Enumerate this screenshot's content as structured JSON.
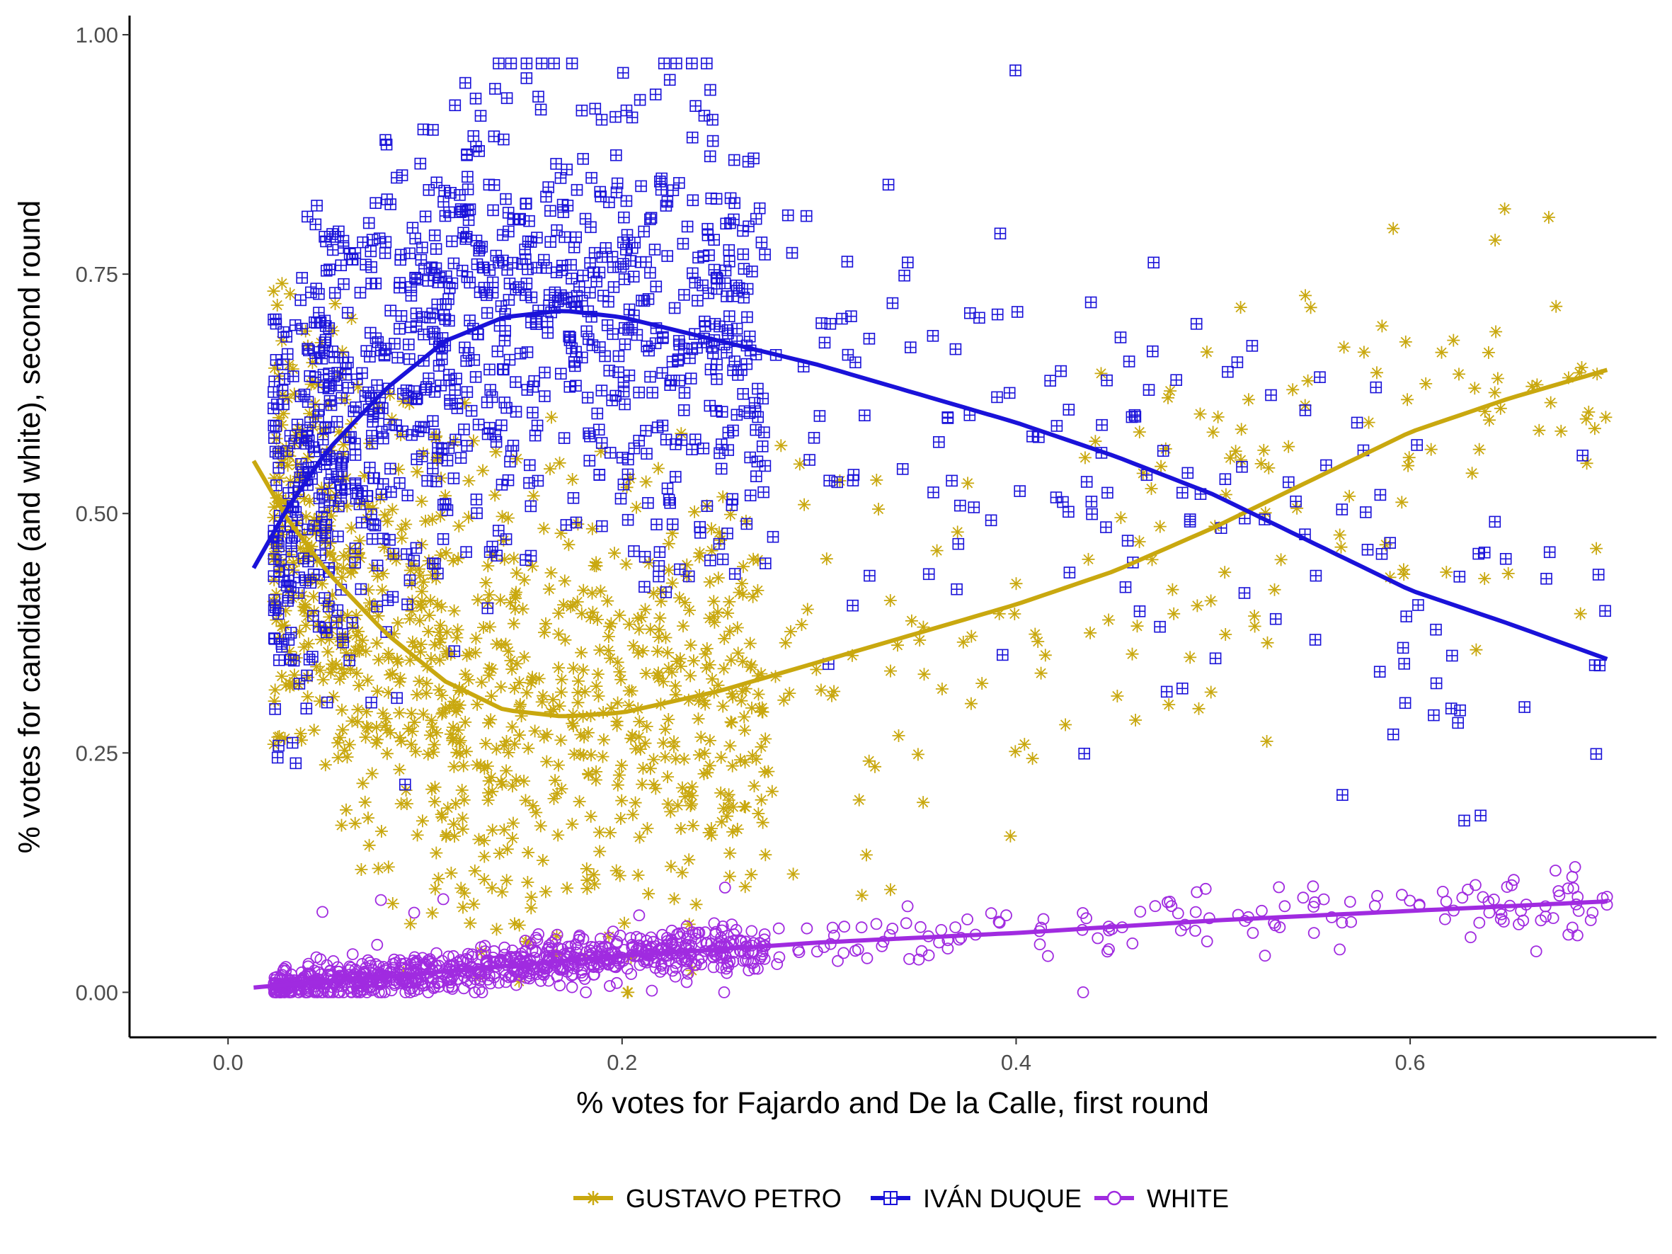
{
  "chart_data": {
    "type": "scatter",
    "title": "",
    "xlabel": "% votes for Fajardo and De la Calle, first round",
    "ylabel": "% votes for candidate (and white), second round",
    "xlim": [
      -0.05,
      0.725
    ],
    "ylim": [
      -0.047,
      1.02
    ],
    "x_ticks": [
      0.0,
      0.2,
      0.4,
      0.6
    ],
    "x_tick_labels": [
      "0.0",
      "0.2",
      "0.4",
      "0.6"
    ],
    "y_ticks": [
      0.0,
      0.25,
      0.5,
      0.75,
      1.0
    ],
    "y_tick_labels": [
      "0.00",
      "0.25",
      "0.50",
      "0.75",
      "1.00"
    ],
    "grid": false,
    "legend_position": "bottom",
    "series": [
      {
        "name": "GUSTAVO PETRO",
        "color": "#c9a80f",
        "marker": "asterisk",
        "trend_x": [
          0.013,
          0.03,
          0.05,
          0.08,
          0.11,
          0.14,
          0.17,
          0.2,
          0.25,
          0.3,
          0.35,
          0.4,
          0.45,
          0.5,
          0.55,
          0.6,
          0.65,
          0.7
        ],
        "trend_y": [
          0.555,
          0.495,
          0.44,
          0.375,
          0.325,
          0.295,
          0.288,
          0.292,
          0.315,
          0.345,
          0.375,
          0.405,
          0.44,
          0.485,
          0.535,
          0.585,
          0.62,
          0.65
        ]
      },
      {
        "name": "IVÁN DUQUE",
        "color": "#1a12d9",
        "marker": "square-plus",
        "trend_x": [
          0.013,
          0.03,
          0.05,
          0.08,
          0.11,
          0.14,
          0.17,
          0.2,
          0.25,
          0.3,
          0.35,
          0.4,
          0.45,
          0.5,
          0.55,
          0.6,
          0.65,
          0.7
        ],
        "trend_y": [
          0.443,
          0.505,
          0.565,
          0.63,
          0.68,
          0.705,
          0.712,
          0.705,
          0.68,
          0.655,
          0.625,
          0.595,
          0.56,
          0.52,
          0.47,
          0.42,
          0.385,
          0.348
        ]
      },
      {
        "name": "WHITE",
        "color": "#a02be0",
        "marker": "circle",
        "trend_x": [
          0.013,
          0.1,
          0.2,
          0.3,
          0.4,
          0.5,
          0.6,
          0.7
        ],
        "trend_y": [
          0.005,
          0.02,
          0.038,
          0.052,
          0.062,
          0.075,
          0.085,
          0.095
        ]
      }
    ],
    "point_clouds": [
      {
        "series": "GUSTAVO PETRO",
        "count": 1100,
        "x_range": [
          0.013,
          0.7
        ],
        "note_x_density": "concentrated near 0.03-0.25",
        "y_spread": 0.17
      },
      {
        "series": "IVÁN DUQUE",
        "count": 1100,
        "x_range": [
          0.013,
          0.7
        ],
        "note_x_density": "concentrated near 0.03-0.25",
        "y_spread": 0.17
      },
      {
        "series": "WHITE",
        "count": 1000,
        "x_range": [
          0.013,
          0.7
        ],
        "note_x_density": "concentrated near 0.02-0.25",
        "y_spread": 0.012
      }
    ]
  }
}
